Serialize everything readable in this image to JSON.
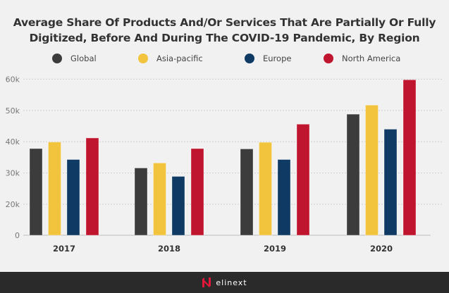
{
  "chart_data": {
    "type": "bar",
    "title_line1": "Average Share Of Products And/Or Services That Are Partially Or Fully",
    "title_line2": "Digitized, Before And During The COVID-19 Pandemic, By Region",
    "categories": [
      "2017",
      "2018",
      "2019",
      "2020"
    ],
    "series": [
      {
        "name": "Global",
        "color": "#3c3c3c",
        "values": [
          37800,
          31600,
          37700,
          48800
        ]
      },
      {
        "name": "Asia-pacific",
        "color": "#f2c43d",
        "values": [
          39900,
          33200,
          39800,
          51700
        ]
      },
      {
        "name": "Europe",
        "color": "#0e3a63",
        "values": [
          34300,
          28900,
          34300,
          44000
        ]
      },
      {
        "name": "North America",
        "color": "#c0152f",
        "values": [
          41200,
          37800,
          45600,
          59800
        ]
      }
    ],
    "yticks": [
      {
        "value": 0,
        "label": "0"
      },
      {
        "value": 20000,
        "label": "20k"
      },
      {
        "value": 30000,
        "label": "30k"
      },
      {
        "value": 40000,
        "label": "40k"
      },
      {
        "value": 50000,
        "label": "50k"
      },
      {
        "value": 60000,
        "label": "60k"
      }
    ],
    "ylim": [
      0,
      60000
    ],
    "xlabel": "",
    "ylabel": "",
    "grid": true,
    "legend_placement": "top"
  },
  "footer": {
    "logo_text": "elinext",
    "logo_color": "#e3173a"
  }
}
